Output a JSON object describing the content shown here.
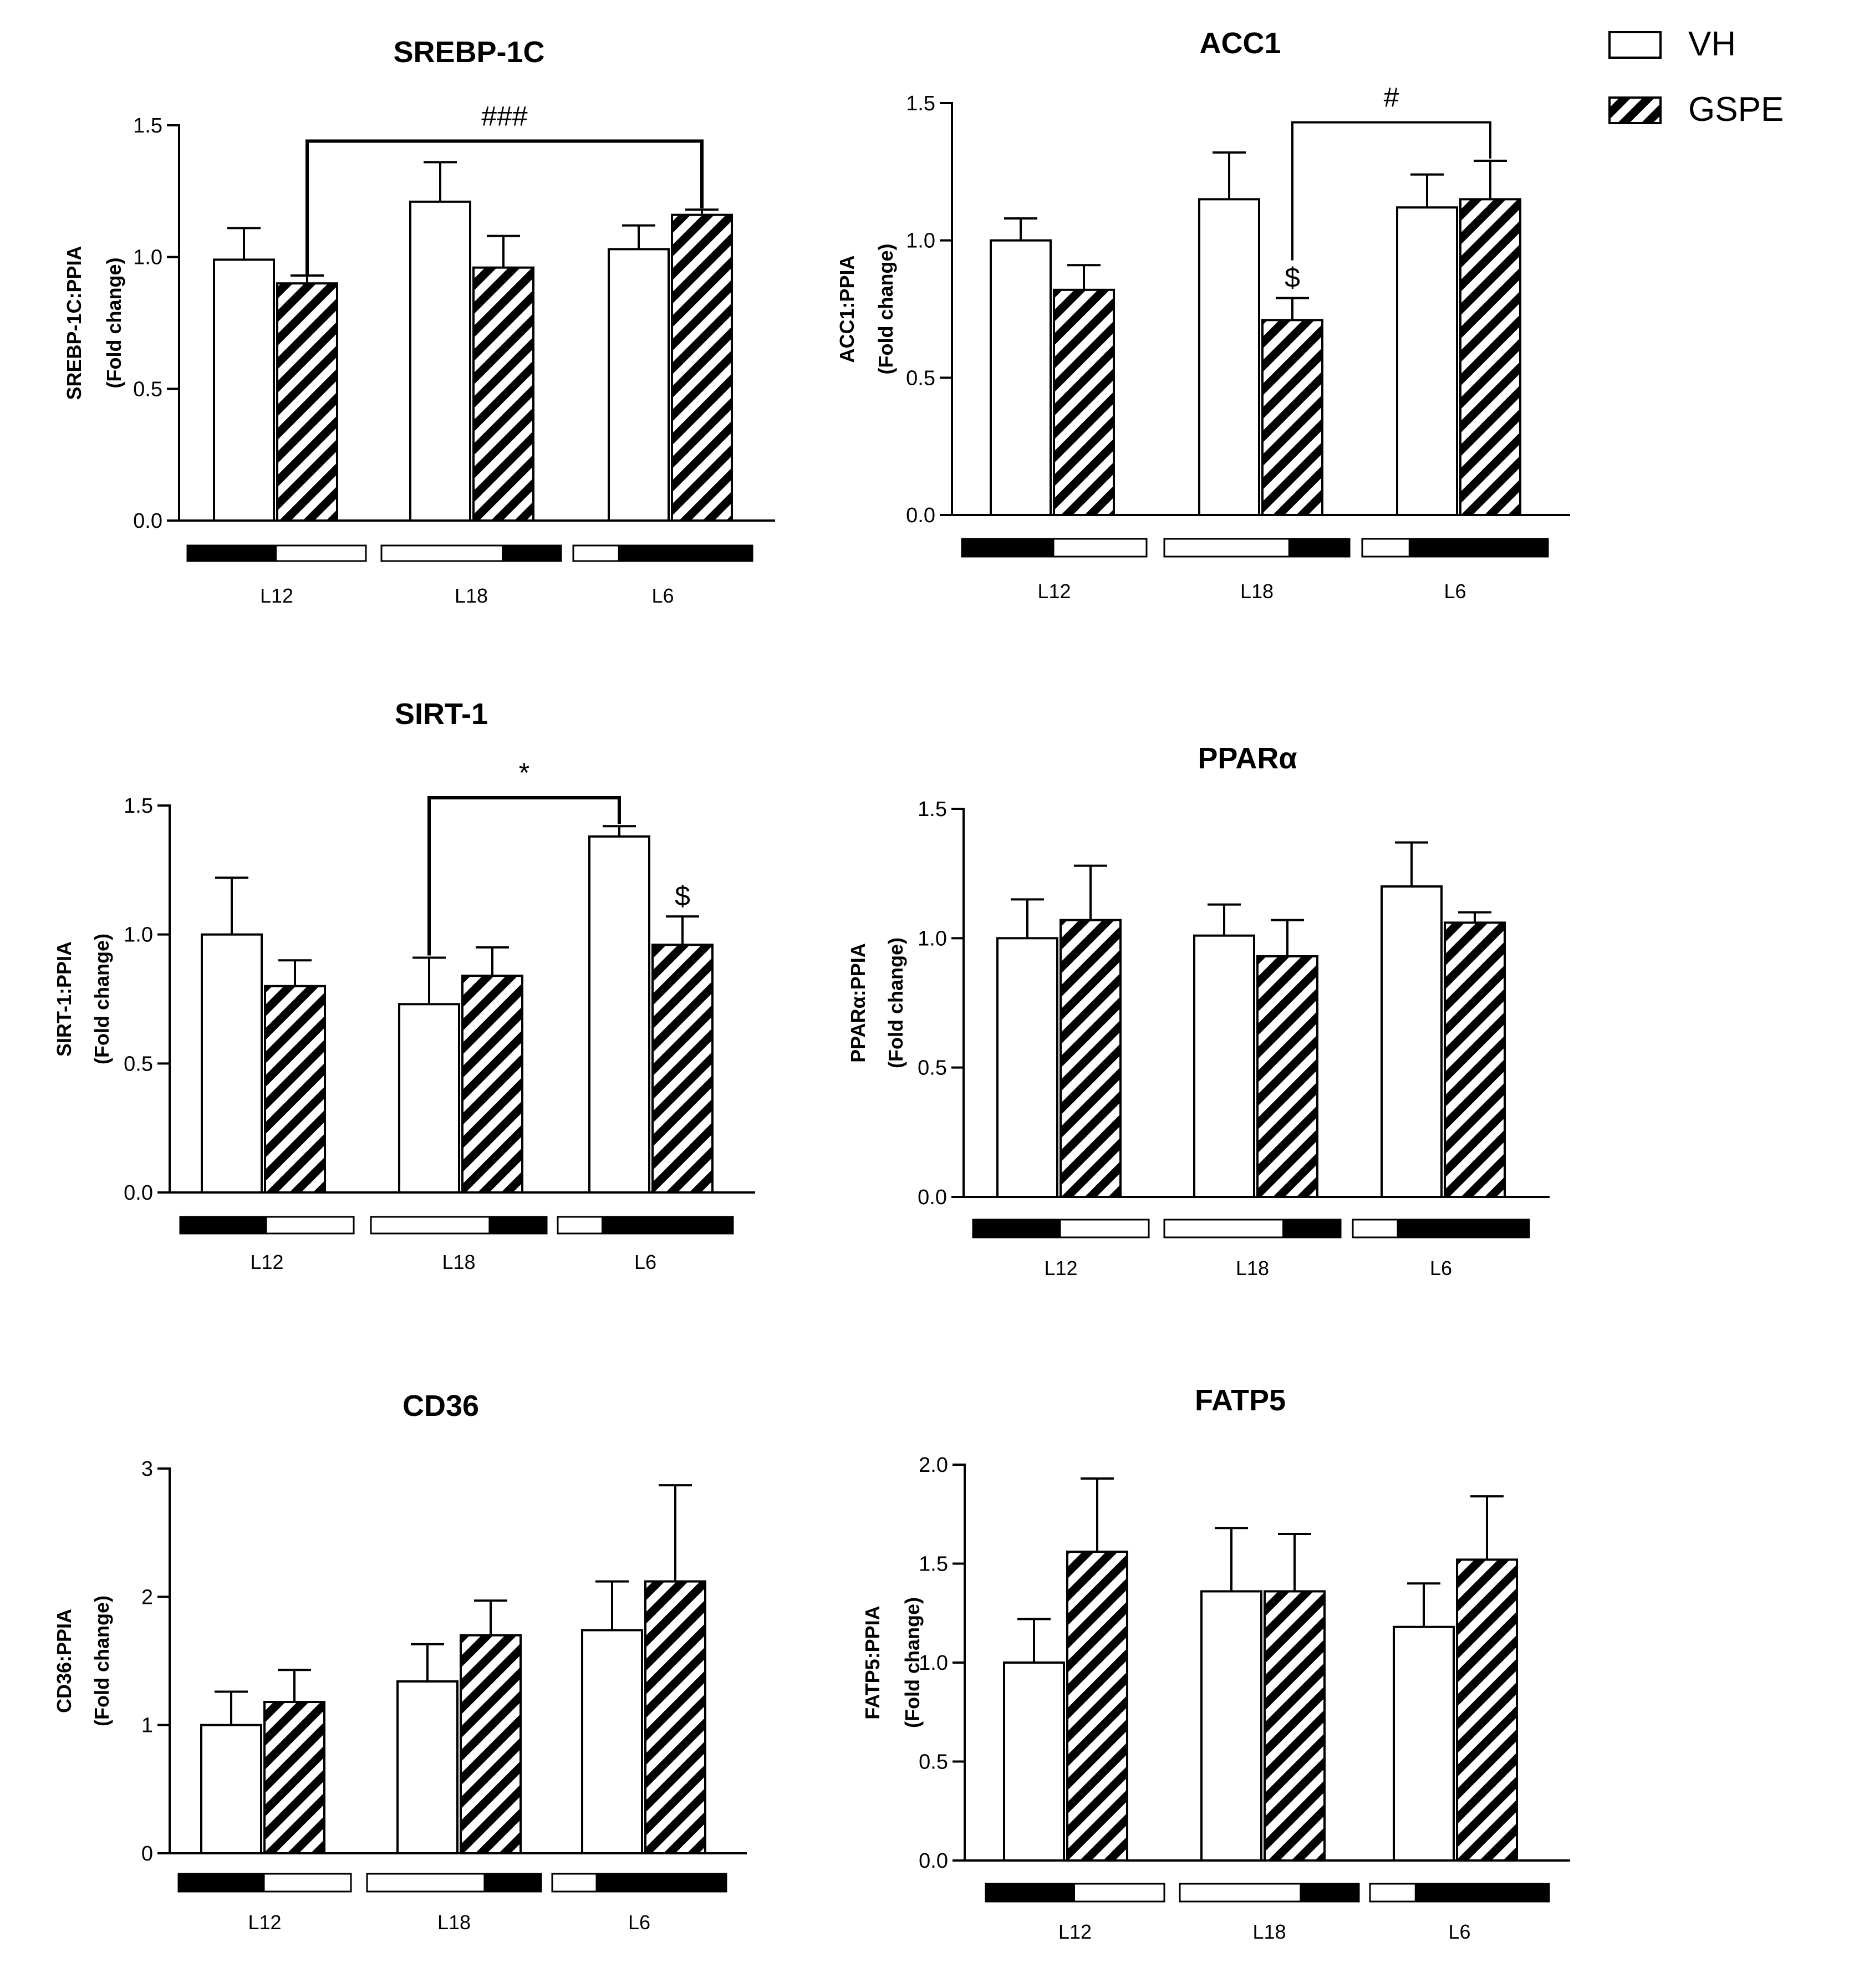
{
  "legend": [
    {
      "label": "VH",
      "style": "open"
    },
    {
      "label": "GSPE",
      "style": "hatched"
    }
  ],
  "chart_data": [
    {
      "type": "bar",
      "title": "SREBP-1C",
      "ylabel": [
        "SREBP-1C:PPIA",
        "(Fold change)"
      ],
      "categories": [
        "L12",
        "L18",
        "L6"
      ],
      "ylim": [
        0,
        1.5
      ],
      "yticks": [
        0.0,
        0.5,
        1.0,
        1.5
      ],
      "ytick_labels": [
        "0.0",
        "0.5",
        "1.0",
        "1.5"
      ],
      "series": [
        {
          "name": "VH",
          "values": [
            0.99,
            1.21,
            1.03
          ],
          "errors": [
            0.12,
            0.15,
            0.09
          ]
        },
        {
          "name": "GSPE",
          "values": [
            0.9,
            0.96,
            1.16
          ],
          "errors": [
            0.03,
            0.12,
            0.02
          ]
        }
      ],
      "photoperiod": [
        [
          0.5,
          0.5
        ],
        [
          0.67,
          0.33
        ],
        [
          0.25,
          0.75
        ]
      ],
      "annotations": [
        {
          "type": "bracket",
          "text": "###",
          "from": [
            0,
            1
          ],
          "to": [
            2,
            1
          ],
          "y": 1.44
        }
      ]
    },
    {
      "type": "bar",
      "title": "ACC1",
      "ylabel": [
        "ACC1:PPIA",
        "(Fold change)"
      ],
      "categories": [
        "L12",
        "L18",
        "L6"
      ],
      "ylim": [
        0,
        1.5
      ],
      "yticks": [
        0.0,
        0.5,
        1.0,
        1.5
      ],
      "ytick_labels": [
        "0.0",
        "0.5",
        "1.0",
        "1.5"
      ],
      "series": [
        {
          "name": "VH",
          "values": [
            1.0,
            1.15,
            1.12
          ],
          "errors": [
            0.08,
            0.17,
            0.12
          ]
        },
        {
          "name": "GSPE",
          "values": [
            0.82,
            0.71,
            1.15
          ],
          "errors": [
            0.09,
            0.08,
            0.14
          ]
        }
      ],
      "photoperiod": [
        [
          0.5,
          0.5
        ],
        [
          0.67,
          0.33
        ],
        [
          0.25,
          0.75
        ]
      ],
      "annotations": [
        {
          "type": "bracket-drop",
          "text": "#",
          "from": [
            1,
            1
          ],
          "to": [
            2,
            1
          ],
          "y": 1.43
        },
        {
          "type": "marker",
          "text": "$",
          "at": [
            1,
            1
          ]
        }
      ]
    },
    {
      "type": "bar",
      "title": "SIRT-1",
      "ylabel": [
        "SIRT-1:PPIA",
        "(Fold change)"
      ],
      "categories": [
        "L12",
        "L18",
        "L6"
      ],
      "ylim": [
        0,
        1.5
      ],
      "yticks": [
        0.0,
        0.5,
        1.0,
        1.5
      ],
      "ytick_labels": [
        "0.0",
        "0.5",
        "1.0",
        "1.5"
      ],
      "series": [
        {
          "name": "VH",
          "values": [
            1.0,
            0.73,
            1.38
          ],
          "errors": [
            0.22,
            0.18,
            0.04
          ]
        },
        {
          "name": "GSPE",
          "values": [
            0.8,
            0.84,
            0.96
          ],
          "errors": [
            0.1,
            0.11,
            0.11
          ]
        }
      ],
      "photoperiod": [
        [
          0.5,
          0.5
        ],
        [
          0.67,
          0.33
        ],
        [
          0.25,
          0.75
        ]
      ],
      "annotations": [
        {
          "type": "bracket",
          "text": "*",
          "from": [
            1,
            0
          ],
          "to": [
            2,
            0
          ],
          "y": 1.53
        },
        {
          "type": "marker",
          "text": "$",
          "at": [
            2,
            1
          ]
        }
      ]
    },
    {
      "type": "bar",
      "title": "PPARα",
      "ylabel": [
        "PPARα:PPIA",
        "(Fold change)"
      ],
      "categories": [
        "L12",
        "L18",
        "L6"
      ],
      "ylim": [
        0,
        1.5
      ],
      "yticks": [
        0.0,
        0.5,
        1.0,
        1.5
      ],
      "ytick_labels": [
        "0.0",
        "0.5",
        "1.0",
        "1.5"
      ],
      "series": [
        {
          "name": "VH",
          "values": [
            1.0,
            1.01,
            1.2
          ],
          "errors": [
            0.15,
            0.12,
            0.17
          ]
        },
        {
          "name": "GSPE",
          "values": [
            1.07,
            0.93,
            1.06
          ],
          "errors": [
            0.21,
            0.14,
            0.04
          ]
        }
      ],
      "photoperiod": [
        [
          0.5,
          0.5
        ],
        [
          0.67,
          0.33
        ],
        [
          0.25,
          0.75
        ]
      ],
      "annotations": []
    },
    {
      "type": "bar",
      "title": "CD36",
      "ylabel": [
        "CD36:PPIA",
        "(Fold change)"
      ],
      "categories": [
        "L12",
        "L18",
        "L6"
      ],
      "ylim": [
        0,
        3
      ],
      "yticks": [
        0,
        1,
        2,
        3
      ],
      "ytick_labels": [
        "0",
        "1",
        "2",
        "3"
      ],
      "series": [
        {
          "name": "VH",
          "values": [
            1.0,
            1.34,
            1.74
          ],
          "errors": [
            0.26,
            0.29,
            0.38
          ]
        },
        {
          "name": "GSPE",
          "values": [
            1.18,
            1.7,
            2.12
          ],
          "errors": [
            0.25,
            0.27,
            0.75
          ]
        }
      ],
      "photoperiod": [
        [
          0.5,
          0.5
        ],
        [
          0.67,
          0.33
        ],
        [
          0.25,
          0.75
        ]
      ],
      "annotations": []
    },
    {
      "type": "bar",
      "title": "FATP5",
      "ylabel": [
        "FATP5:PPIA",
        "(Fold change)"
      ],
      "categories": [
        "L12",
        "L18",
        "L6"
      ],
      "ylim": [
        0,
        2.0
      ],
      "yticks": [
        0.0,
        0.5,
        1.0,
        1.5,
        2.0
      ],
      "ytick_labels": [
        "0.0",
        "0.5",
        "1.0",
        "1.5",
        "2.0"
      ],
      "series": [
        {
          "name": "VH",
          "values": [
            1.0,
            1.36,
            1.18
          ],
          "errors": [
            0.22,
            0.32,
            0.22
          ]
        },
        {
          "name": "GSPE",
          "values": [
            1.56,
            1.36,
            1.52
          ],
          "errors": [
            0.37,
            0.29,
            0.32
          ]
        }
      ],
      "photoperiod": [
        [
          0.5,
          0.5
        ],
        [
          0.67,
          0.33
        ],
        [
          0.25,
          0.75
        ]
      ],
      "annotations": []
    }
  ]
}
